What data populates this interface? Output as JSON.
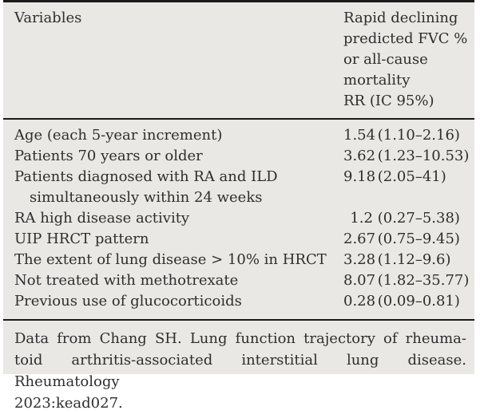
{
  "table": {
    "header": {
      "col1": "Variables",
      "col2_lines": [
        "Rapid declining",
        "predicted FVC %",
        "or all-cause",
        "mortality",
        "RR (IC 95%)"
      ]
    },
    "rows": [
      {
        "label": "Age (each 5-year increment)",
        "rr": "1.54",
        "ci": "(1.10–2.16)"
      },
      {
        "label": "Patients 70 years or older",
        "rr": "3.62",
        "ci": "(1.23–10.53)"
      },
      {
        "label": "Patients diagnosed with RA and ILD",
        "label2": "simultaneously within 24 weeks",
        "rr": "9.18",
        "ci": "(2.05–41)"
      },
      {
        "label": "RA high disease activity",
        "rr": "1.2",
        "ci": "(0.27–5.38)"
      },
      {
        "label": "UIP HRCT pattern",
        "rr": "2.67",
        "ci": "(0.75–9.45)"
      },
      {
        "label": "The extent of lung disease > 10% in HRCT",
        "rr": "3.28",
        "ci": "(1.12–9.6)"
      },
      {
        "label": "Not treated with methotrexate",
        "rr": "8.07",
        "ci": "(1.82–35.77)"
      },
      {
        "label": "Previous use of glucocorticoids",
        "rr": "0.28",
        "ci": "(0.09–0.81)"
      }
    ],
    "footnote_lines": [
      "Data from Chang SH. Lung function trajectory of rheuma-",
      "toid arthritis-associated interstitial lung disease. Rheumatology",
      "2023:kead027."
    ]
  },
  "colors": {
    "panel_bg": "#e9e8e5",
    "rule": "#1b1b1b",
    "text": "#2e2e2e"
  }
}
